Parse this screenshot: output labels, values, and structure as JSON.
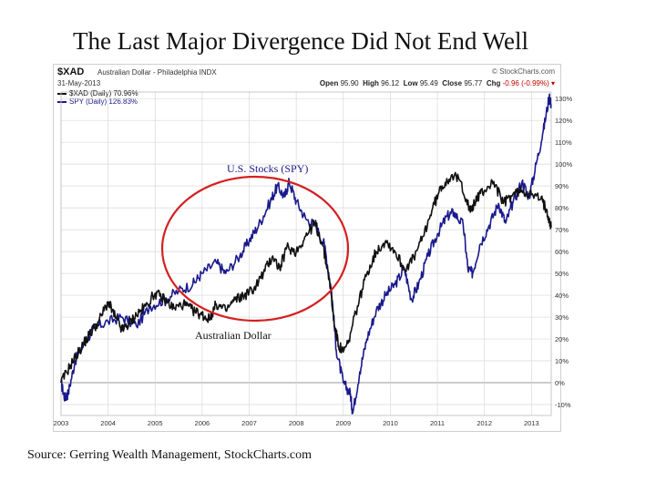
{
  "slide": {
    "title": "The Last Major Divergence Did Not End Well",
    "source": "Source: Gerring Wealth Management, StockCharts.com"
  },
  "chart_header": {
    "symbol": "$XAD",
    "description": "Australian Dollar - Philadelphia INDX",
    "date": "31-May-2013",
    "brand": "© StockCharts.com",
    "open_label": "Open",
    "open": "95.90",
    "high_label": "High",
    "high": "96.12",
    "low_label": "Low",
    "low": "95.49",
    "close_label": "Close",
    "close": "95.77",
    "chg_label": "Chg",
    "chg": "-0.96 (-0.99%)"
  },
  "legend": {
    "xad": "$XAD (Daily) 70.96%",
    "spy": "SPY (Daily) 126.83%"
  },
  "annotations": {
    "spy_label": "U.S. Stocks (SPY)",
    "xad_label": "Australian Dollar"
  },
  "colors": {
    "xad": "#111111",
    "spy": "#1a1a8c",
    "circle": "#d42020",
    "grid": "#d8d8d8",
    "zero_line": "#999999"
  },
  "chart_data": {
    "type": "line",
    "title": "",
    "xlabel": "",
    "ylabel": "",
    "x_ticks": [
      "2003",
      "2004",
      "2005",
      "2006",
      "2007",
      "2008",
      "2009",
      "2010",
      "2011",
      "2012",
      "2013"
    ],
    "y_ticks": [
      "-10%",
      "0%",
      "10%",
      "20%",
      "30%",
      "40%",
      "50%",
      "60%",
      "70%",
      "80%",
      "90%",
      "100%",
      "110%",
      "120%",
      "130%"
    ],
    "xlim": [
      2003.0,
      2013.42
    ],
    "ylim": [
      -15,
      133
    ],
    "grid": true,
    "legend_position": "top-left",
    "series": [
      {
        "name": "$XAD (Daily) 70.96%",
        "key": "xad",
        "points": [
          [
            2003.0,
            0
          ],
          [
            2003.2,
            8
          ],
          [
            2003.4,
            15
          ],
          [
            2003.6,
            22
          ],
          [
            2003.8,
            28
          ],
          [
            2004.0,
            37
          ],
          [
            2004.15,
            30
          ],
          [
            2004.3,
            24
          ],
          [
            2004.45,
            27
          ],
          [
            2004.6,
            31
          ],
          [
            2004.8,
            35
          ],
          [
            2005.0,
            41
          ],
          [
            2005.2,
            38
          ],
          [
            2005.4,
            34
          ],
          [
            2005.6,
            36
          ],
          [
            2005.8,
            33
          ],
          [
            2006.0,
            31
          ],
          [
            2006.15,
            29
          ],
          [
            2006.3,
            36
          ],
          [
            2006.5,
            33
          ],
          [
            2006.7,
            38
          ],
          [
            2006.9,
            40
          ],
          [
            2007.1,
            43
          ],
          [
            2007.3,
            50
          ],
          [
            2007.5,
            58
          ],
          [
            2007.65,
            52
          ],
          [
            2007.8,
            62
          ],
          [
            2008.0,
            60
          ],
          [
            2008.2,
            67
          ],
          [
            2008.4,
            73
          ],
          [
            2008.55,
            64
          ],
          [
            2008.7,
            48
          ],
          [
            2008.8,
            28
          ],
          [
            2008.9,
            17
          ],
          [
            2009.0,
            14
          ],
          [
            2009.1,
            18
          ],
          [
            2009.3,
            35
          ],
          [
            2009.5,
            50
          ],
          [
            2009.7,
            60
          ],
          [
            2009.9,
            65
          ],
          [
            2010.1,
            60
          ],
          [
            2010.3,
            52
          ],
          [
            2010.5,
            57
          ],
          [
            2010.7,
            67
          ],
          [
            2010.9,
            80
          ],
          [
            2011.1,
            90
          ],
          [
            2011.3,
            95
          ],
          [
            2011.5,
            92
          ],
          [
            2011.7,
            78
          ],
          [
            2011.85,
            85
          ],
          [
            2012.0,
            88
          ],
          [
            2012.2,
            92
          ],
          [
            2012.4,
            82
          ],
          [
            2012.6,
            86
          ],
          [
            2012.8,
            88
          ],
          [
            2013.0,
            86
          ],
          [
            2013.2,
            84
          ],
          [
            2013.33,
            79
          ],
          [
            2013.42,
            71
          ]
        ]
      },
      {
        "name": "SPY (Daily) 126.83%",
        "key": "spy",
        "points": [
          [
            2003.0,
            0
          ],
          [
            2003.08,
            -7
          ],
          [
            2003.15,
            -5
          ],
          [
            2003.3,
            10
          ],
          [
            2003.5,
            18
          ],
          [
            2003.7,
            25
          ],
          [
            2004.0,
            28
          ],
          [
            2004.3,
            30
          ],
          [
            2004.6,
            26
          ],
          [
            2004.9,
            35
          ],
          [
            2005.2,
            38
          ],
          [
            2005.5,
            42
          ],
          [
            2005.8,
            45
          ],
          [
            2006.0,
            50
          ],
          [
            2006.3,
            55
          ],
          [
            2006.5,
            50
          ],
          [
            2006.8,
            58
          ],
          [
            2007.0,
            65
          ],
          [
            2007.2,
            72
          ],
          [
            2007.45,
            83
          ],
          [
            2007.6,
            90
          ],
          [
            2007.75,
            85
          ],
          [
            2007.85,
            92
          ],
          [
            2008.0,
            83
          ],
          [
            2008.2,
            75
          ],
          [
            2008.4,
            72
          ],
          [
            2008.6,
            63
          ],
          [
            2008.75,
            42
          ],
          [
            2008.85,
            15
          ],
          [
            2009.0,
            0
          ],
          [
            2009.15,
            -5
          ],
          [
            2009.2,
            -14
          ],
          [
            2009.35,
            5
          ],
          [
            2009.5,
            20
          ],
          [
            2009.7,
            33
          ],
          [
            2009.9,
            40
          ],
          [
            2010.1,
            45
          ],
          [
            2010.3,
            52
          ],
          [
            2010.45,
            38
          ],
          [
            2010.6,
            45
          ],
          [
            2010.8,
            58
          ],
          [
            2011.0,
            68
          ],
          [
            2011.2,
            76
          ],
          [
            2011.35,
            78
          ],
          [
            2011.55,
            72
          ],
          [
            2011.65,
            52
          ],
          [
            2011.75,
            50
          ],
          [
            2011.9,
            63
          ],
          [
            2012.1,
            72
          ],
          [
            2012.3,
            82
          ],
          [
            2012.45,
            73
          ],
          [
            2012.6,
            82
          ],
          [
            2012.8,
            92
          ],
          [
            2012.95,
            85
          ],
          [
            2013.1,
            100
          ],
          [
            2013.25,
            115
          ],
          [
            2013.38,
            131
          ],
          [
            2013.42,
            127
          ]
        ]
      }
    ]
  }
}
